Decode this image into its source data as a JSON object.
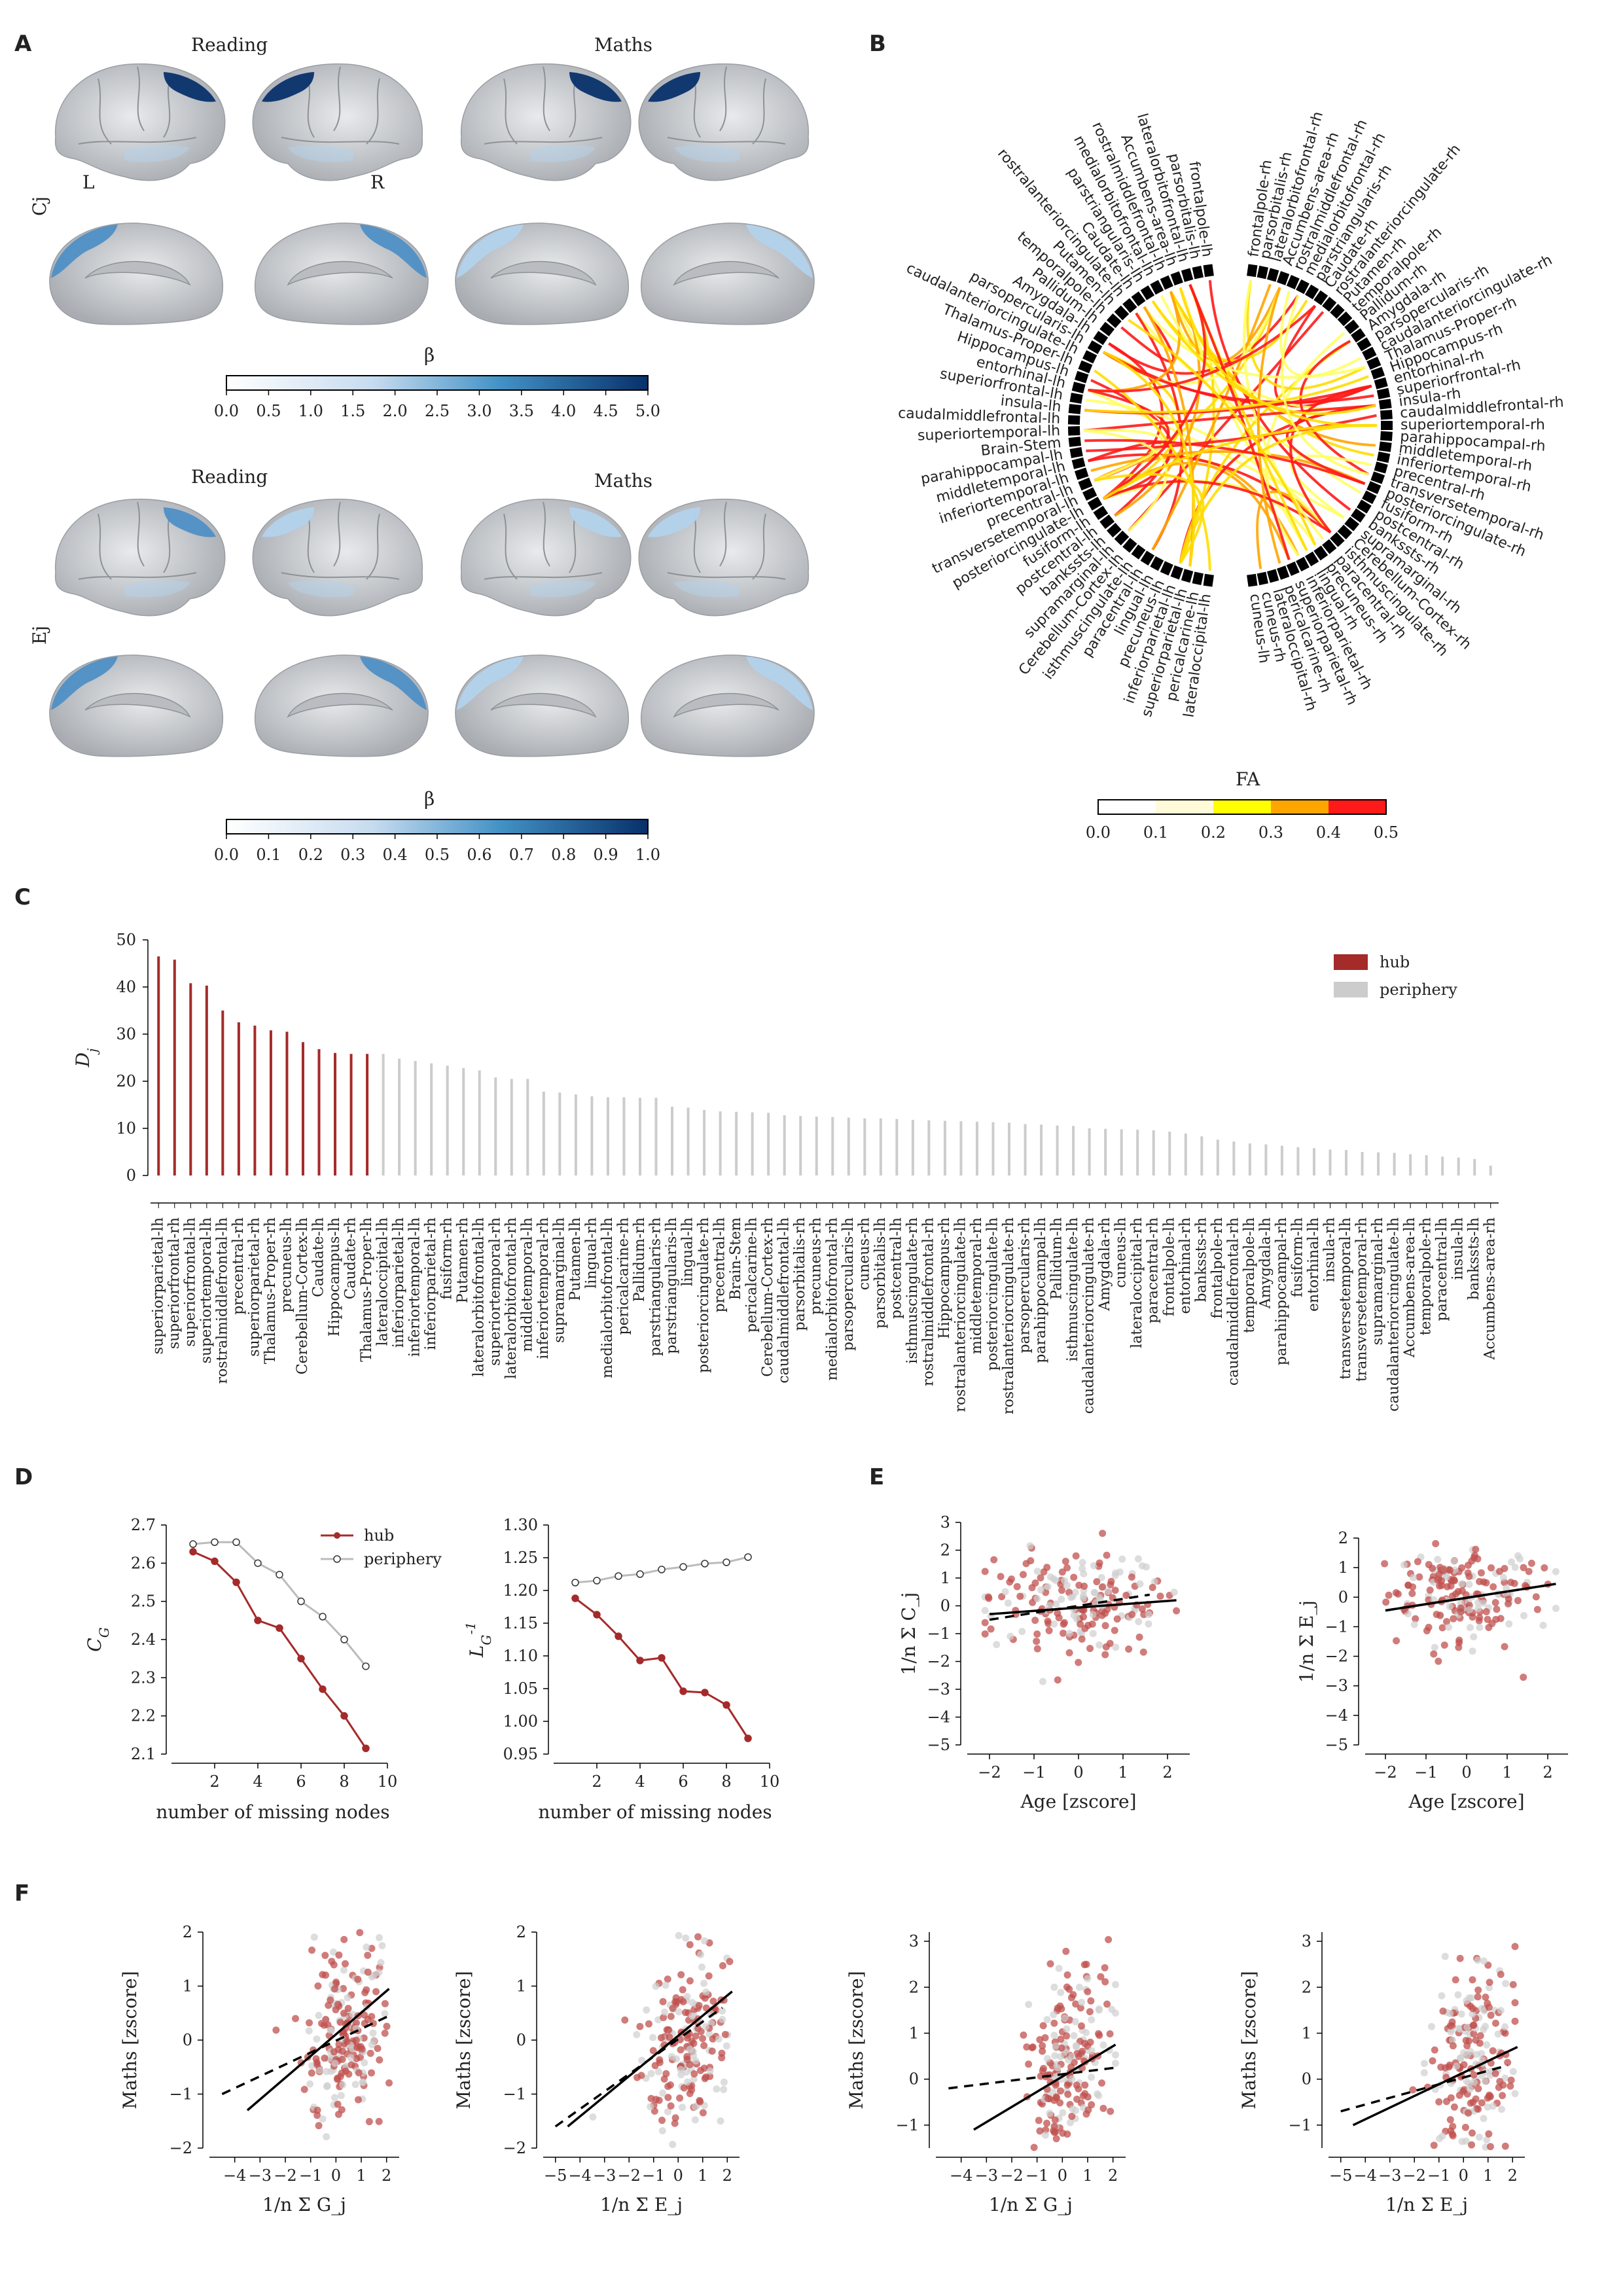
{
  "colors": {
    "hub": "#a52a2a",
    "periphery": "#cccccc",
    "brain": "#d8dcde",
    "blue_dark": "#08306b",
    "blue_mid": "#4f8fc6",
    "blue_light": "#b3d2ec"
  },
  "panelA": {
    "letter": "A",
    "top_titles": [
      "Reading",
      "Maths"
    ],
    "hemi_labels": [
      "L",
      "R"
    ],
    "row_labels": [
      "Cj",
      "Ej"
    ],
    "bottom_titles": [
      "Reading",
      "Maths"
    ],
    "cbar1": {
      "label": "β",
      "ticks": [
        "0.0",
        "0.5",
        "1.0",
        "1.5",
        "2.0",
        "2.5",
        "3.0",
        "3.5",
        "4.0",
        "4.5",
        "5.0"
      ]
    },
    "cbar2": {
      "label": "β",
      "ticks": [
        "0.0",
        "0.1",
        "0.2",
        "0.3",
        "0.4",
        "0.5",
        "0.6",
        "0.7",
        "0.8",
        "0.9",
        "1.0"
      ]
    }
  },
  "panelB": {
    "letter": "B",
    "cbar": {
      "label": "FA",
      "ticks": [
        "0.0",
        "0.1",
        "0.2",
        "0.3",
        "0.4",
        "0.5"
      ],
      "colors": [
        "#ffffff",
        "#fffbd8",
        "#ffff00",
        "#ffa500",
        "#ff1a1a"
      ]
    },
    "left_regions": [
      "frontalpole-lh",
      "parsorbitalis-lh",
      "lateralorbitofrontal-lh",
      "Accumbens-area-lh",
      "rostralmiddlefrontal-lh",
      "medialorbitofrontal-lh",
      "parstriangularis-lh",
      "Caudate-lh",
      "rostralanteriorcingulate-lh",
      "Putamen-lh",
      "temporalpole-lh",
      "Pallidum-lh",
      "Amygdala-lh",
      "parsopercularis-lh",
      "caudalanteriorcingulate-lh",
      "Thalamus-Proper-lh",
      "Hippocampus-lh",
      "entorhinal-lh",
      "superiorfrontal-lh",
      "insula-lh",
      "caudalmiddlefrontal-lh",
      "superiortemporal-lh",
      "Brain-Stem",
      "parahippocampal-lh",
      "middletemporal-lh",
      "inferiortemporal-lh",
      "precentral-lh",
      "transversetemporal-lh",
      "posteriorcingulate-lh",
      "fusiform-lh",
      "postcentral-lh",
      "bankssts-lh",
      "supramarginal-lh",
      "Cerebellum-Cortex-lh",
      "isthmuscingulate-lh",
      "paracentral-lh",
      "lingual-lh",
      "precuneus-lh",
      "inferiorparietal-lh",
      "superiorparietal-lh",
      "pericalcarine-lh",
      "lateraloccipital-lh"
    ],
    "right_regions": [
      "frontalpole-rh",
      "parsorbitalis-rh",
      "lateralorbitofrontal-rh",
      "Accumbens-area-rh",
      "rostralmiddlefrontal-rh",
      "medialorbitofrontal-rh",
      "parstriangularis-rh",
      "Caudate-rh",
      "rostralanteriorcingulate-rh",
      "Putamen-rh",
      "temporalpole-rh",
      "Pallidum-rh",
      "Amygdala-rh",
      "parsopercularis-rh",
      "caudalanteriorcingulate-rh",
      "Thalamus-Proper-rh",
      "Hippocampus-rh",
      "entorhinal-rh",
      "superiorfrontal-rh",
      "insula-rh",
      "caudalmiddlefrontal-rh",
      "superiortemporal-rh",
      "parahippocampal-rh",
      "middletemporal-rh",
      "inferiortemporal-rh",
      "precentral-rh",
      "transversetemporal-rh",
      "posteriorcingulate-rh",
      "fusiform-rh",
      "postcentral-rh",
      "bankssts-rh",
      "supramarginal-rh",
      "Cerebellum-Cortex-rh",
      "isthmuscingulate-rh",
      "paracentral-rh",
      "precuneus-rh",
      "lingual-rh",
      "inferiorparietal-rh",
      "superiorparietal-rh",
      "pericalcarine-rh",
      "lateraloccipital-rh",
      "cuneus-rh",
      "cuneus-lh"
    ]
  },
  "panelC": {
    "letter": "C",
    "chart_data": {
      "type": "bar",
      "ylabel": "D_j",
      "ylim": [
        0,
        50
      ],
      "yticks": [
        "0",
        "10",
        "20",
        "30",
        "40",
        "50"
      ],
      "legend": [
        "hub",
        "periphery"
      ],
      "n_hub": 14,
      "categories": [
        "superiorparietal-lh",
        "superiorfrontal-rh",
        "superiorfrontal-lh",
        "superiortemporal-lh",
        "rostralmiddlefrontal-lh",
        "precentral-rh",
        "superiorparietal-rh",
        "Thalamus-Proper-rh",
        "precuneus-lh",
        "Cerebellum-Cortex-lh",
        "Caudate-lh",
        "Hippocampus-lh",
        "Caudate-rh",
        "Thalamus-Proper-lh",
        "lateraloccipital-lh",
        "inferiorparietal-lh",
        "inferiortemporal-lh",
        "inferiorparietal-rh",
        "fusiform-rh",
        "Putamen-rh",
        "lateralorbitofrontal-lh",
        "superiortemporal-rh",
        "lateralorbitofrontal-rh",
        "middletemporal-lh",
        "inferiortemporal-rh",
        "supramarginal-lh",
        "Putamen-lh",
        "lingual-rh",
        "medialorbitofrontal-lh",
        "pericalcarine-rh",
        "Pallidum-rh",
        "parstriangularis-rh",
        "parstriangularis-lh",
        "lingual-lh",
        "posteriorcingulate-rh",
        "precentral-lh",
        "Brain-Stem",
        "pericalcarine-lh",
        "Cerebellum-Cortex-rh",
        "caudalmiddlefrontal-lh",
        "parsorbitalis-rh",
        "precuneus-rh",
        "medialorbitofrontal-rh",
        "parsopercularis-lh",
        "cuneus-rh",
        "parsorbitalis-lh",
        "postcentral-lh",
        "isthmuscingulate-rh",
        "rostralmiddlefrontal-rh",
        "Hippocampus-rh",
        "rostralanteriorcingulate-lh",
        "middletemporal-rh",
        "posteriorcingulate-lh",
        "rostralanteriorcingulate-rh",
        "parsopercularis-rh",
        "parahippocampal-lh",
        "Pallidum-lh",
        "isthmuscingulate-lh",
        "caudalanteriorcingulate-rh",
        "Amygdala-rh",
        "cuneus-lh",
        "lateraloccipital-rh",
        "paracentral-rh",
        "frontalpole-lh",
        "entorhinal-rh",
        "bankssts-rh",
        "frontalpole-rh",
        "caudalmiddlefrontal-rh",
        "temporalpole-lh",
        "Amygdala-lh",
        "parahippocampal-rh",
        "fusiform-lh",
        "entorhinal-lh",
        "insula-rh",
        "transversetemporal-lh",
        "transversetemporal-rh",
        "supramarginal-rh",
        "caudalanteriorcingulate-lh",
        "Accumbens-area-lh",
        "temporalpole-rh",
        "paracentral-lh",
        "insula-lh",
        "bankssts-lh",
        "Accumbens-area-rh"
      ],
      "values": [
        46.5,
        45.8,
        40.8,
        40.3,
        35,
        32.5,
        31.8,
        30.8,
        30.5,
        28.3,
        26.8,
        26,
        25.8,
        25.8,
        25.8,
        24.8,
        24.3,
        23.8,
        23.3,
        22.8,
        22.3,
        20.8,
        20.5,
        20.5,
        17.8,
        17.6,
        17.2,
        16.8,
        16.6,
        16.6,
        16.5,
        16.5,
        14.6,
        14.4,
        13.9,
        13.6,
        13.5,
        13.4,
        13.3,
        12.8,
        12.6,
        12.5,
        12.4,
        12.3,
        12.1,
        12.1,
        12.0,
        11.8,
        11.7,
        11.6,
        11.5,
        11.4,
        11.3,
        11.2,
        10.9,
        10.8,
        10.6,
        10.5,
        10.0,
        9.9,
        9.8,
        9.7,
        9.6,
        9.3,
        8.9,
        8.3,
        7.6,
        7.2,
        6.8,
        6.6,
        6.3,
        6.0,
        5.8,
        5.5,
        5.4,
        5.0,
        4.9,
        4.8,
        4.5,
        4.3,
        4.0,
        3.8,
        3.5,
        2.1
      ]
    }
  },
  "panelD": {
    "letter": "D",
    "chart_data": [
      {
        "type": "line",
        "xlabel": "number of missing nodes",
        "ylabel": "C_G",
        "xlim": [
          0,
          10
        ],
        "ylim": [
          2.1,
          2.7
        ],
        "xticks": [
          "2",
          "4",
          "6",
          "8",
          "10"
        ],
        "yticks": [
          "2.1",
          "2.2",
          "2.3",
          "2.4",
          "2.5",
          "2.6",
          "2.7"
        ],
        "series": [
          {
            "name": "hub",
            "x": [
              1,
              2,
              3,
              4,
              5,
              6,
              7,
              8,
              9
            ],
            "values": [
              2.63,
              2.605,
              2.55,
              2.45,
              2.43,
              2.35,
              2.27,
              2.2,
              2.115
            ]
          },
          {
            "name": "periphery",
            "x": [
              1,
              2,
              3,
              4,
              5,
              6,
              7,
              8,
              9
            ],
            "values": [
              2.65,
              2.655,
              2.655,
              2.6,
              2.57,
              2.5,
              2.46,
              2.4,
              2.33
            ]
          }
        ]
      },
      {
        "type": "line",
        "xlabel": "number of missing nodes",
        "ylabel": "L_G^-1",
        "xlim": [
          0,
          10
        ],
        "ylim": [
          0.95,
          1.3
        ],
        "xticks": [
          "2",
          "4",
          "6",
          "8",
          "10"
        ],
        "yticks": [
          "0.95",
          "1.00",
          "1.05",
          "1.10",
          "1.15",
          "1.20",
          "1.25",
          "1.30"
        ],
        "series": [
          {
            "name": "hub",
            "x": [
              1,
              2,
              3,
              4,
              5,
              6,
              7,
              8,
              9
            ],
            "values": [
              1.188,
              1.163,
              1.13,
              1.093,
              1.097,
              1.046,
              1.044,
              1.025,
              0.974
            ]
          },
          {
            "name": "periphery",
            "x": [
              1,
              2,
              3,
              4,
              5,
              6,
              7,
              8,
              9
            ],
            "values": [
              1.212,
              1.215,
              1.222,
              1.225,
              1.232,
              1.236,
              1.241,
              1.243,
              1.251
            ]
          }
        ]
      }
    ]
  },
  "panelE": {
    "letter": "E",
    "chart_data": [
      {
        "type": "scatter",
        "xlabel": "Age [zscore]",
        "ylabel": "1/n Σ C_j",
        "xlim": [
          -2.5,
          2.5
        ],
        "ylim": [
          -5,
          3
        ],
        "xticks": [
          "-2",
          "-1",
          "0",
          "1",
          "2"
        ],
        "yticks": [
          "-5",
          "-4",
          "-3",
          "-2",
          "-1",
          "0",
          "1",
          "2",
          "3"
        ],
        "fit_solid": [
          [
            -2,
            -0.3
          ],
          [
            2.2,
            0.2
          ]
        ],
        "fit_dashed": [
          [
            -2,
            -0.5
          ],
          [
            1.6,
            0.4
          ]
        ]
      },
      {
        "type": "scatter",
        "xlabel": "Age [zscore]",
        "ylabel": "1/n Σ E_j",
        "xlim": [
          -2.5,
          2.5
        ],
        "ylim": [
          -5,
          2
        ],
        "xticks": [
          "-2",
          "-1",
          "0",
          "1",
          "2"
        ],
        "yticks": [
          "-5",
          "-4",
          "-3",
          "-2",
          "-1",
          "0",
          "1",
          "2"
        ],
        "fit_solid": [
          [
            -2,
            -0.45
          ],
          [
            2.2,
            0.45
          ]
        ],
        "fit_dashed": [
          [
            -2,
            -0.45
          ],
          [
            2.2,
            0.45
          ]
        ]
      }
    ]
  },
  "panelF": {
    "letter": "F",
    "chart_data": [
      {
        "type": "scatter",
        "xlabel": "1/n Σ G_j",
        "ylabel": "Maths [zscore]",
        "xlim": [
          -5,
          2.5
        ],
        "ylim": [
          -2,
          2
        ],
        "xticks": [
          "-4",
          "-3",
          "-2",
          "-1",
          "0",
          "1",
          "2"
        ],
        "yticks": [
          "-2",
          "-1",
          "0",
          "1",
          "2"
        ],
        "fit_solid": [
          [
            -3.5,
            -1.3
          ],
          [
            2.1,
            0.95
          ]
        ],
        "fit_dashed": [
          [
            -4.5,
            -1.0
          ],
          [
            2.1,
            0.45
          ]
        ]
      },
      {
        "type": "scatter",
        "xlabel": "1/n Σ E_j",
        "ylabel": "Maths [zscore]",
        "xlim": [
          -5.5,
          2.5
        ],
        "ylim": [
          -2,
          2
        ],
        "xticks": [
          "-5",
          "-4",
          "-3",
          "-2",
          "-1",
          "0",
          "1",
          "2"
        ],
        "yticks": [
          "-2",
          "-1",
          "0",
          "1",
          "2"
        ],
        "fit_solid": [
          [
            -4.5,
            -1.6
          ],
          [
            2.2,
            0.9
          ]
        ],
        "fit_dashed": [
          [
            -5,
            -1.6
          ],
          [
            1.8,
            0.6
          ]
        ]
      },
      {
        "type": "scatter",
        "xlabel": "1/n Σ G_j",
        "ylabel": "Maths [zscore]",
        "xlim": [
          -5,
          2.5
        ],
        "ylim": [
          -1.5,
          3.2
        ],
        "xticks": [
          "-4",
          "-3",
          "-2",
          "-1",
          "0",
          "1",
          "2"
        ],
        "yticks": [
          "-1",
          "0",
          "1",
          "2",
          "3"
        ],
        "fit_solid": [
          [
            -3.5,
            -1.1
          ],
          [
            2.1,
            0.75
          ]
        ],
        "fit_dashed": [
          [
            -4.5,
            -0.2
          ],
          [
            2.1,
            0.25
          ]
        ]
      },
      {
        "type": "scatter",
        "xlabel": "1/n Σ E_j",
        "ylabel": "Maths [zscore]",
        "xlim": [
          -5.5,
          2.5
        ],
        "ylim": [
          -1.5,
          3.2
        ],
        "xticks": [
          "-5",
          "-4",
          "-3",
          "-2",
          "-1",
          "0",
          "1",
          "2"
        ],
        "yticks": [
          "-1",
          "0",
          "1",
          "2",
          "3"
        ],
        "fit_solid": [
          [
            -4.5,
            -1.0
          ],
          [
            2.2,
            0.7
          ]
        ],
        "fit_dashed": [
          [
            -5,
            -0.7
          ],
          [
            1.8,
            0.3
          ]
        ]
      }
    ]
  }
}
